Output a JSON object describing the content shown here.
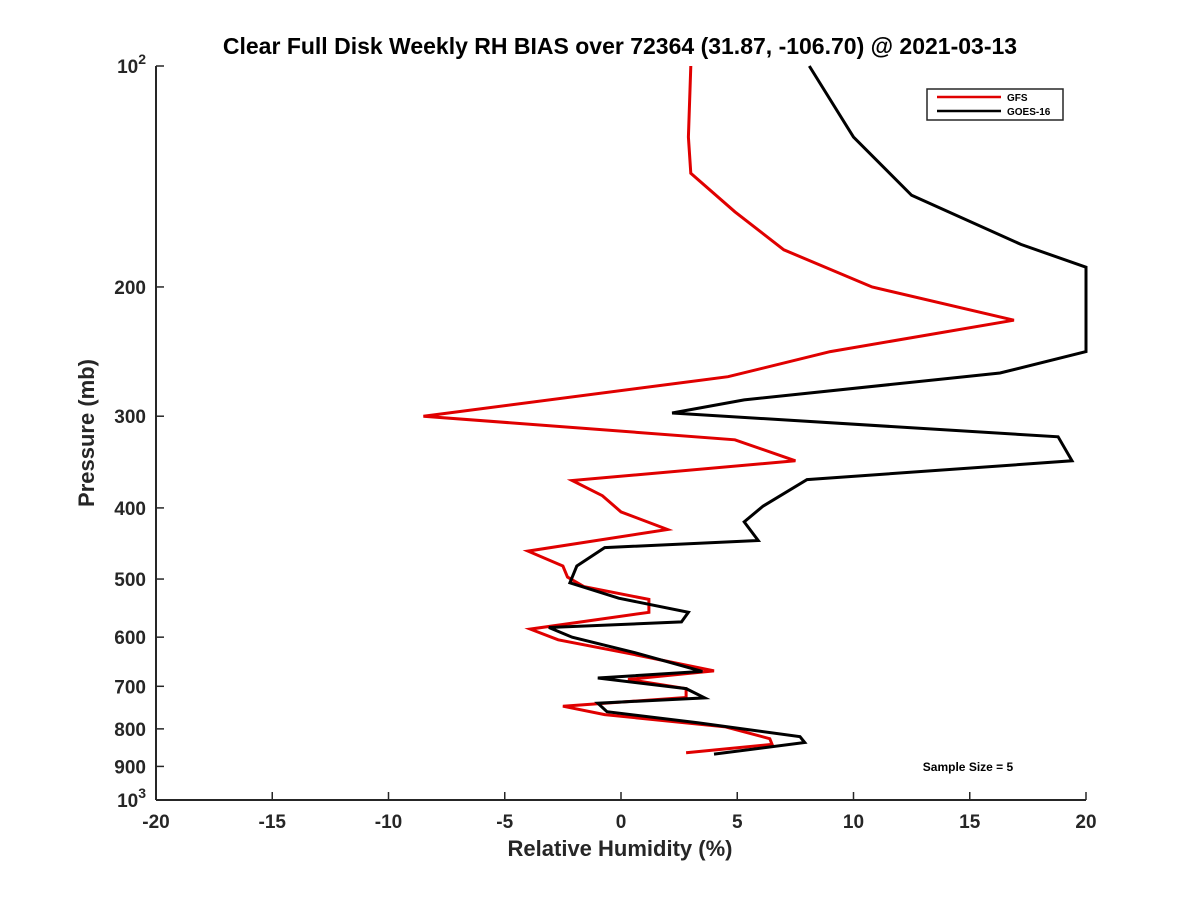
{
  "chart_data": {
    "type": "line",
    "title": "Clear Full Disk Weekly RH BIAS over 72364 (31.87, -106.70) @ 2021-03-13",
    "xlabel": "Relative Humidity (%)",
    "ylabel": "Pressure (mb)",
    "xlim": [
      -20,
      20
    ],
    "ylim": [
      100,
      1000
    ],
    "y_scale": "log",
    "y_reversed": true,
    "x_ticks": [
      "-20",
      "-15",
      "-10",
      "-5",
      "0",
      "5",
      "10",
      "15",
      "20"
    ],
    "y_ticks": [
      {
        "value": 100,
        "base": "10",
        "exp": "2"
      },
      {
        "value": 200,
        "base": "200",
        "exp": ""
      },
      {
        "value": 300,
        "base": "300",
        "exp": ""
      },
      {
        "value": 400,
        "base": "400",
        "exp": ""
      },
      {
        "value": 500,
        "base": "500",
        "exp": ""
      },
      {
        "value": 600,
        "base": "600",
        "exp": ""
      },
      {
        "value": 700,
        "base": "700",
        "exp": ""
      },
      {
        "value": 800,
        "base": "800",
        "exp": ""
      },
      {
        "value": 900,
        "base": "900",
        "exp": ""
      },
      {
        "value": 1000,
        "base": "10",
        "exp": "3"
      }
    ],
    "legend_position": "top-right",
    "grid": false,
    "annotation": "Sample Size = 5",
    "series": [
      {
        "name": "GFS",
        "color": "#e00000",
        "x": [
          3.0,
          2.9,
          3.0,
          4.9,
          7.0,
          10.8,
          16.9,
          9.0,
          4.6,
          -8.5,
          4.9,
          7.5,
          -2.1,
          -0.8,
          0.0,
          2.0,
          -4.0,
          -2.5,
          -2.3,
          -1.6,
          1.2,
          1.2,
          -3.9,
          -2.7,
          0.5,
          4.0,
          0.3,
          2.8,
          2.8,
          -2.5,
          -0.7,
          4.5,
          6.4,
          6.5,
          2.8
        ],
        "y": [
          100,
          125,
          140,
          158,
          178,
          200,
          222,
          245,
          265,
          300,
          323,
          345,
          367,
          385,
          405,
          428,
          458,
          480,
          497,
          512,
          533,
          555,
          585,
          605,
          633,
          667,
          685,
          705,
          725,
          745,
          765,
          795,
          825,
          840,
          862
        ]
      },
      {
        "name": "GOES-16",
        "color": "#000000",
        "x": [
          8.1,
          10.0,
          12.5,
          17.2,
          20.0,
          20.0,
          16.3,
          5.3,
          2.2,
          18.8,
          19.4,
          8.0,
          6.1,
          5.3,
          5.9,
          -0.7,
          -1.9,
          -2.2,
          -0.1,
          2.9,
          2.6,
          -3.1,
          -2.1,
          0.6,
          3.5,
          -1.0,
          2.8,
          3.6,
          -1.0,
          -0.6,
          3.3,
          7.7,
          7.9,
          4.0
        ],
        "y": [
          100,
          125,
          150,
          175,
          188,
          245,
          262,
          285,
          297,
          320,
          345,
          366,
          398,
          418,
          443,
          453,
          480,
          506,
          531,
          555,
          572,
          582,
          600,
          630,
          668,
          682,
          705,
          726,
          738,
          758,
          785,
          820,
          835,
          866
        ]
      }
    ]
  }
}
